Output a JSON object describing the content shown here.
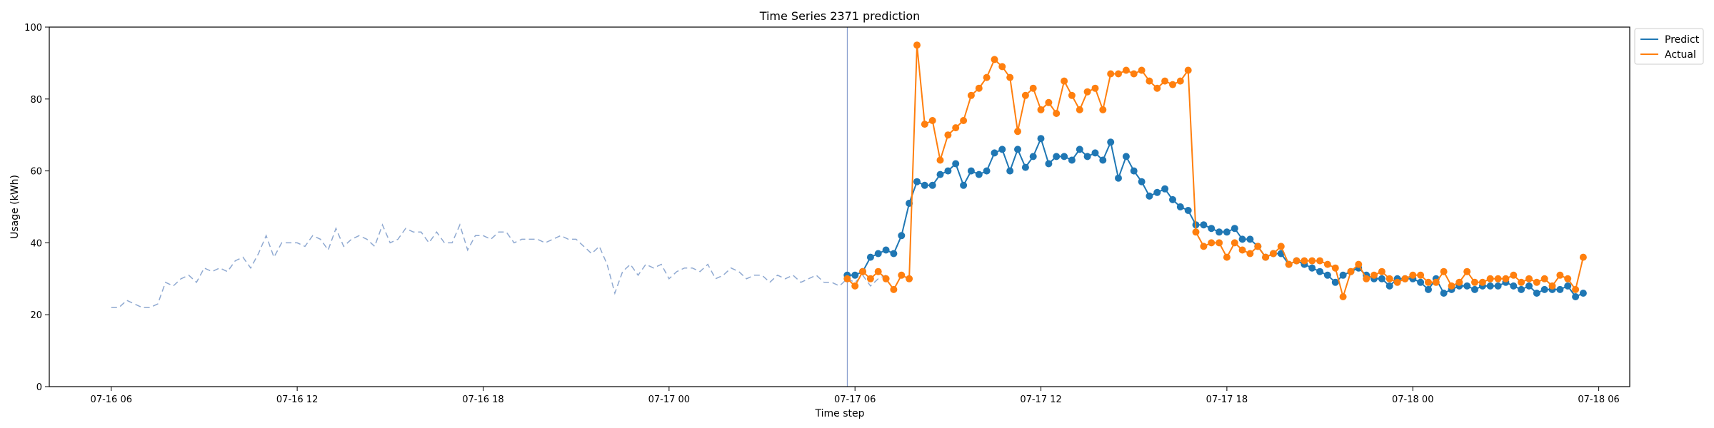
{
  "chart_data": {
    "type": "line",
    "title": "Time Series 2371 prediction",
    "xlabel": "Time step",
    "ylabel": "Usage (kWh)",
    "ylim": [
      0,
      100
    ],
    "xlim": [
      "2024-07-16 04:00",
      "2024-07-18 07:00"
    ],
    "x_tick_labels": [
      "07-16 06",
      "07-16 12",
      "07-16 18",
      "07-17 00",
      "07-17 06",
      "07-17 12",
      "07-17 18",
      "07-18 00",
      "07-18 06"
    ],
    "x_ticks": [
      "2024-07-16 06:00",
      "2024-07-16 12:00",
      "2024-07-16 18:00",
      "2024-07-17 00:00",
      "2024-07-17 06:00",
      "2024-07-17 12:00",
      "2024-07-17 18:00",
      "2024-07-18 00:00",
      "2024-07-18 06:00"
    ],
    "y_ticks": [
      0,
      20,
      40,
      60,
      80,
      100
    ],
    "legend_position": "top-right, outside plot",
    "forecast_start": "2024-07-17 05:45",
    "x_start": "2024-07-16 06:00",
    "x_step_minutes": 15,
    "history": {
      "style": "dashed",
      "color": "#8fa9d1",
      "values": [
        22,
        22,
        24,
        23,
        22,
        22,
        23,
        29,
        28,
        30,
        31,
        29,
        33,
        32,
        33,
        32,
        35,
        36,
        33,
        37,
        42,
        36,
        40,
        40,
        40,
        39,
        42,
        41,
        38,
        44,
        39,
        41,
        42,
        41,
        39,
        45,
        40,
        41,
        44,
        43,
        43,
        40,
        43,
        40,
        40,
        45,
        38,
        42,
        42,
        41,
        43,
        43,
        40,
        41,
        41,
        41,
        40,
        41,
        42,
        41,
        41,
        39,
        37,
        39,
        34,
        26,
        32,
        34,
        31,
        34,
        33,
        34,
        30,
        32,
        33,
        33,
        32,
        34,
        30,
        31,
        33,
        32,
        30,
        31,
        31,
        29,
        31,
        30,
        31,
        29,
        30,
        31,
        29,
        29,
        28,
        30,
        29,
        31,
        28,
        30,
        31
      ]
    },
    "series": [
      {
        "name": "Predict",
        "color": "#1f77b4",
        "values": [
          31,
          31,
          32,
          36,
          37,
          38,
          37,
          42,
          51,
          57,
          56,
          56,
          59,
          60,
          62,
          56,
          60,
          59,
          60,
          65,
          66,
          60,
          66,
          61,
          64,
          69,
          62,
          64,
          64,
          63,
          66,
          64,
          65,
          63,
          68,
          58,
          64,
          60,
          57,
          53,
          54,
          55,
          52,
          50,
          49,
          45,
          45,
          44,
          43,
          43,
          44,
          41,
          41,
          39,
          36,
          37,
          37,
          34,
          35,
          34,
          33,
          32,
          31,
          29,
          31,
          32,
          33,
          31,
          30,
          30,
          28,
          30,
          30,
          30,
          29,
          27,
          30,
          26,
          27,
          28,
          28,
          27,
          28,
          28,
          28,
          29,
          28,
          27,
          28,
          26,
          27,
          27,
          27,
          28,
          25,
          26
        ]
      },
      {
        "name": "Actual",
        "color": "#ff7f0e",
        "values": [
          30,
          28,
          32,
          30,
          32,
          30,
          27,
          31,
          30,
          95,
          73,
          74,
          63,
          70,
          72,
          74,
          81,
          83,
          86,
          91,
          89,
          86,
          71,
          81,
          83,
          77,
          79,
          76,
          85,
          81,
          77,
          82,
          83,
          77,
          87,
          87,
          88,
          87,
          88,
          85,
          83,
          85,
          84,
          85,
          88,
          43,
          39,
          40,
          40,
          36,
          40,
          38,
          37,
          39,
          36,
          37,
          39,
          34,
          35,
          35,
          35,
          35,
          34,
          33,
          25,
          32,
          34,
          30,
          31,
          32,
          30,
          29,
          30,
          31,
          31,
          29,
          29,
          32,
          28,
          29,
          32,
          29,
          29,
          30,
          30,
          30,
          31,
          29,
          30,
          29,
          30,
          28,
          31,
          30,
          27,
          36
        ]
      }
    ]
  }
}
